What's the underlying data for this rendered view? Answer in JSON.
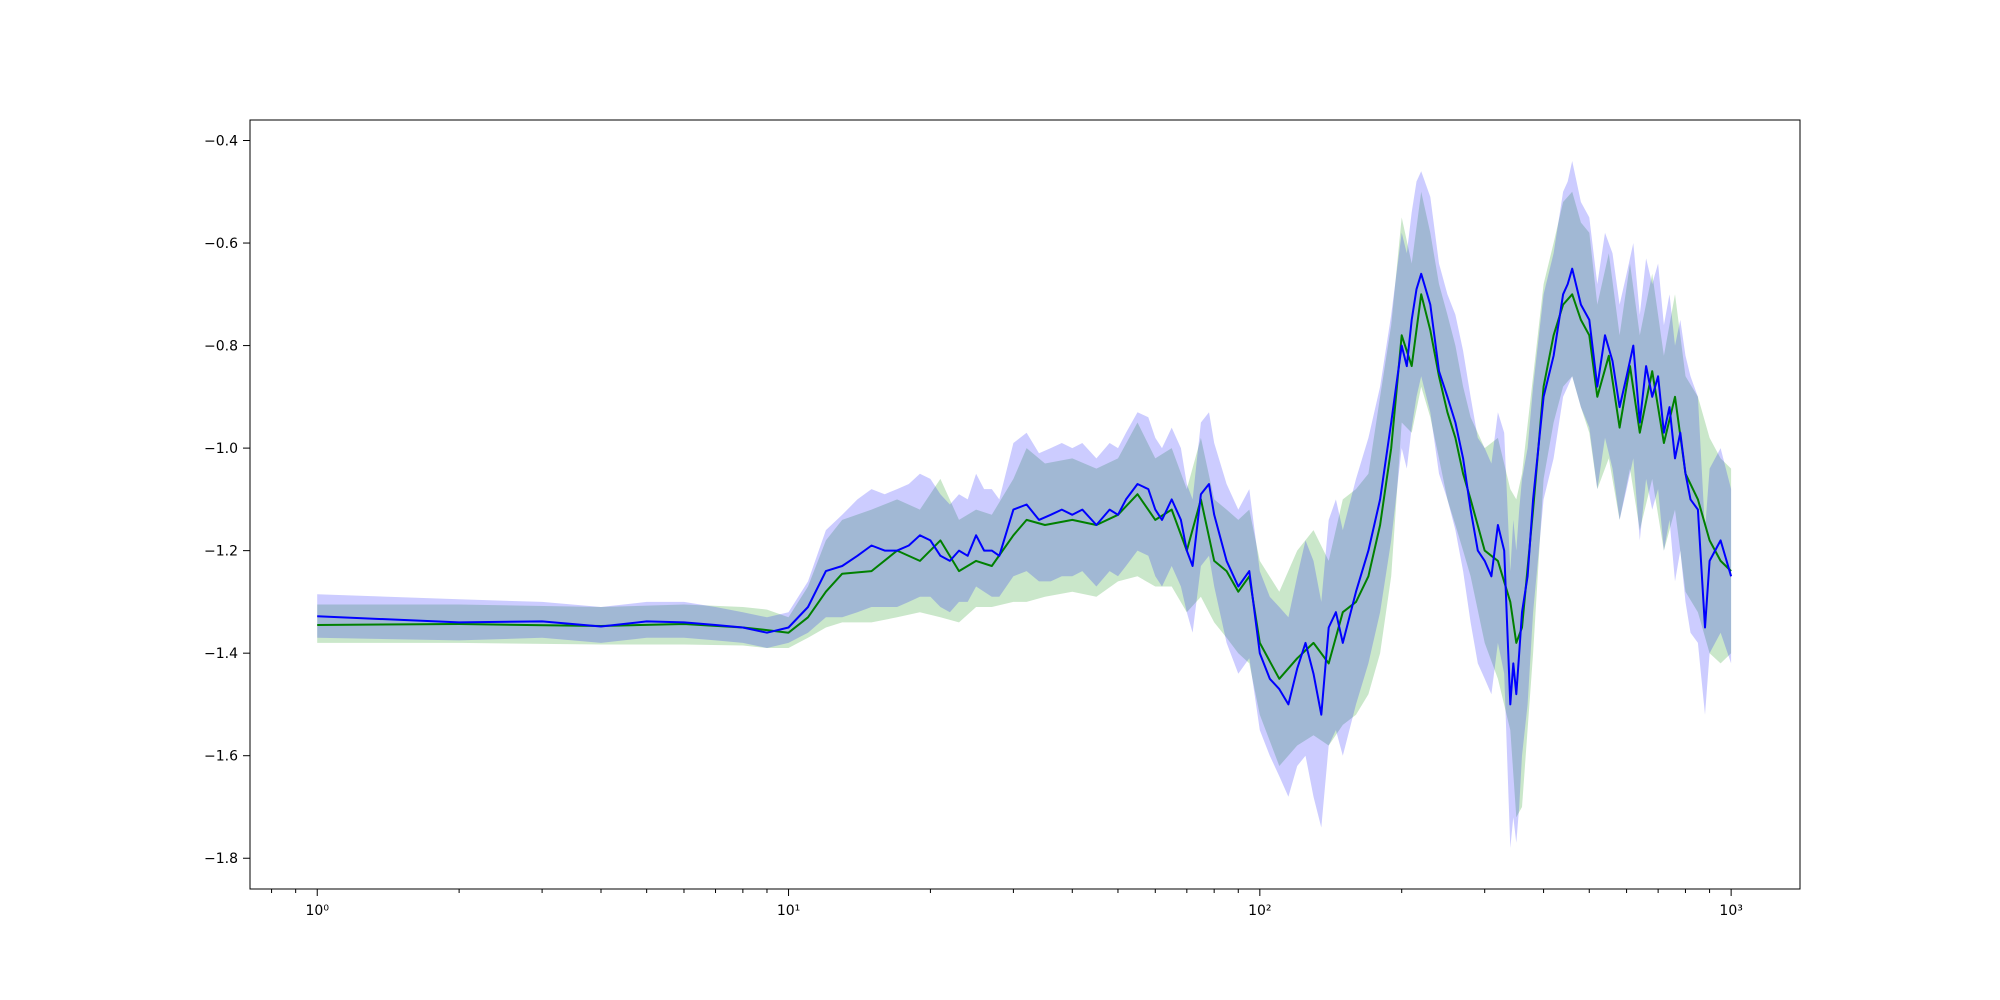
{
  "chart_data": {
    "type": "line",
    "title": "",
    "xlabel": "",
    "ylabel": "",
    "xscale": "log",
    "xlim": [
      0.72,
      1400
    ],
    "ylim": [
      -1.86,
      -0.36
    ],
    "grid": false,
    "legend": "none",
    "x_ticks": [
      {
        "value": 1,
        "label": "10⁰"
      },
      {
        "value": 10,
        "label": "10¹"
      },
      {
        "value": 100,
        "label": "10²"
      },
      {
        "value": 1000,
        "label": "10³"
      }
    ],
    "y_ticks": [
      {
        "value": -0.4,
        "label": "−0.4"
      },
      {
        "value": -0.6,
        "label": "−0.6"
      },
      {
        "value": -0.8,
        "label": "−0.8"
      },
      {
        "value": -1.0,
        "label": "−1.0"
      },
      {
        "value": -1.2,
        "label": "−1.2"
      },
      {
        "value": -1.4,
        "label": "−1.4"
      },
      {
        "value": -1.6,
        "label": "−1.6"
      },
      {
        "value": -1.8,
        "label": "−1.8"
      }
    ],
    "series": [
      {
        "color": "#008000",
        "band_color": "#2ca02c",
        "band_opacity": 0.25,
        "x": [
          1,
          2,
          4,
          6,
          8,
          9,
          10,
          11,
          12,
          13,
          15,
          17,
          19,
          21,
          23,
          25,
          27,
          30,
          32,
          35,
          40,
          45,
          50,
          55,
          60,
          65,
          70,
          75,
          80,
          85,
          90,
          95,
          100,
          110,
          120,
          130,
          140,
          150,
          160,
          170,
          180,
          190,
          200,
          210,
          220,
          230,
          240,
          250,
          260,
          270,
          280,
          300,
          320,
          340,
          350,
          360,
          380,
          400,
          420,
          440,
          460,
          480,
          500,
          520,
          550,
          580,
          610,
          640,
          680,
          720,
          760,
          800,
          850,
          900,
          950,
          1000
        ],
        "y": [
          -1.345,
          -1.343,
          -1.347,
          -1.343,
          -1.35,
          -1.355,
          -1.36,
          -1.33,
          -1.28,
          -1.245,
          -1.24,
          -1.2,
          -1.22,
          -1.18,
          -1.24,
          -1.22,
          -1.23,
          -1.17,
          -1.14,
          -1.15,
          -1.14,
          -1.15,
          -1.13,
          -1.09,
          -1.14,
          -1.12,
          -1.2,
          -1.1,
          -1.22,
          -1.24,
          -1.28,
          -1.25,
          -1.38,
          -1.45,
          -1.41,
          -1.38,
          -1.42,
          -1.32,
          -1.3,
          -1.25,
          -1.15,
          -1.0,
          -0.78,
          -0.84,
          -0.7,
          -0.77,
          -0.86,
          -0.93,
          -0.98,
          -1.05,
          -1.1,
          -1.2,
          -1.22,
          -1.3,
          -1.38,
          -1.35,
          -1.12,
          -0.88,
          -0.78,
          -0.72,
          -0.7,
          -0.75,
          -0.78,
          -0.9,
          -0.82,
          -0.96,
          -0.84,
          -0.97,
          -0.85,
          -0.99,
          -0.9,
          -1.05,
          -1.1,
          -1.18,
          -1.22,
          -1.24
        ],
        "lower": [
          -1.38,
          -1.38,
          -1.383,
          -1.383,
          -1.385,
          -1.39,
          -1.39,
          -1.37,
          -1.35,
          -1.34,
          -1.34,
          -1.33,
          -1.32,
          -1.33,
          -1.34,
          -1.31,
          -1.31,
          -1.3,
          -1.3,
          -1.29,
          -1.28,
          -1.29,
          -1.26,
          -1.25,
          -1.27,
          -1.27,
          -1.32,
          -1.29,
          -1.34,
          -1.37,
          -1.4,
          -1.42,
          -1.52,
          -1.62,
          -1.58,
          -1.56,
          -1.58,
          -1.54,
          -1.52,
          -1.48,
          -1.4,
          -1.25,
          -0.95,
          -0.97,
          -0.88,
          -0.94,
          -1.02,
          -1.1,
          -1.15,
          -1.2,
          -1.25,
          -1.38,
          -1.45,
          -1.55,
          -1.72,
          -1.7,
          -1.4,
          -1.06,
          -0.95,
          -0.88,
          -0.86,
          -0.92,
          -0.97,
          -1.08,
          -1.02,
          -1.14,
          -1.04,
          -1.16,
          -1.06,
          -1.2,
          -1.12,
          -1.28,
          -1.32,
          -1.4,
          -1.42,
          -1.4
        ],
        "upper": [
          -1.305,
          -1.305,
          -1.31,
          -1.305,
          -1.31,
          -1.315,
          -1.33,
          -1.27,
          -1.18,
          -1.14,
          -1.12,
          -1.1,
          -1.12,
          -1.06,
          -1.14,
          -1.12,
          -1.13,
          -1.06,
          -1.0,
          -1.03,
          -1.02,
          -1.04,
          -1.02,
          -0.95,
          -1.02,
          -1.0,
          -1.08,
          -0.98,
          -1.1,
          -1.12,
          -1.14,
          -1.12,
          -1.22,
          -1.28,
          -1.2,
          -1.16,
          -1.22,
          -1.1,
          -1.08,
          -1.05,
          -0.9,
          -0.76,
          -0.55,
          -0.64,
          -0.5,
          -0.58,
          -0.68,
          -0.74,
          -0.8,
          -0.88,
          -0.94,
          -1.0,
          -0.98,
          -1.08,
          -1.1,
          -1.05,
          -0.86,
          -0.68,
          -0.6,
          -0.52,
          -0.5,
          -0.56,
          -0.58,
          -0.72,
          -0.62,
          -0.78,
          -0.64,
          -0.78,
          -0.66,
          -0.82,
          -0.7,
          -0.86,
          -0.9,
          -0.98,
          -1.02,
          -1.04
        ]
      },
      {
        "color": "#0000ff",
        "band_color": "#0000ff",
        "band_opacity": 0.2,
        "x": [
          1,
          2,
          3,
          4,
          5,
          6,
          7,
          8,
          9,
          10,
          11,
          12,
          13,
          14,
          15,
          16,
          17,
          18,
          19,
          20,
          21,
          22,
          23,
          24,
          25,
          26,
          27,
          28,
          30,
          32,
          34,
          36,
          38,
          40,
          42,
          45,
          48,
          50,
          52,
          55,
          58,
          60,
          62,
          65,
          68,
          70,
          72,
          75,
          78,
          80,
          85,
          90,
          95,
          100,
          105,
          110,
          115,
          120,
          125,
          130,
          135,
          140,
          145,
          150,
          160,
          170,
          180,
          190,
          200,
          205,
          210,
          215,
          220,
          230,
          240,
          250,
          260,
          270,
          280,
          290,
          300,
          310,
          320,
          330,
          340,
          345,
          350,
          355,
          360,
          370,
          380,
          400,
          420,
          440,
          450,
          460,
          480,
          500,
          520,
          540,
          560,
          580,
          600,
          620,
          640,
          660,
          680,
          700,
          720,
          740,
          760,
          780,
          800,
          820,
          850,
          880,
          900,
          950,
          1000
        ],
        "y": [
          -1.328,
          -1.34,
          -1.338,
          -1.348,
          -1.338,
          -1.34,
          -1.345,
          -1.35,
          -1.36,
          -1.35,
          -1.31,
          -1.24,
          -1.23,
          -1.21,
          -1.19,
          -1.2,
          -1.2,
          -1.19,
          -1.17,
          -1.18,
          -1.21,
          -1.22,
          -1.2,
          -1.21,
          -1.17,
          -1.2,
          -1.2,
          -1.21,
          -1.12,
          -1.11,
          -1.14,
          -1.13,
          -1.12,
          -1.13,
          -1.12,
          -1.15,
          -1.12,
          -1.13,
          -1.1,
          -1.07,
          -1.08,
          -1.12,
          -1.14,
          -1.1,
          -1.14,
          -1.2,
          -1.23,
          -1.09,
          -1.07,
          -1.13,
          -1.22,
          -1.27,
          -1.24,
          -1.4,
          -1.45,
          -1.47,
          -1.5,
          -1.43,
          -1.38,
          -1.44,
          -1.52,
          -1.35,
          -1.32,
          -1.38,
          -1.28,
          -1.2,
          -1.1,
          -0.95,
          -0.8,
          -0.84,
          -0.75,
          -0.69,
          -0.66,
          -0.72,
          -0.85,
          -0.9,
          -0.95,
          -1.02,
          -1.12,
          -1.2,
          -1.22,
          -1.25,
          -1.15,
          -1.2,
          -1.5,
          -1.42,
          -1.48,
          -1.4,
          -1.32,
          -1.25,
          -1.1,
          -0.9,
          -0.82,
          -0.7,
          -0.68,
          -0.65,
          -0.72,
          -0.75,
          -0.88,
          -0.78,
          -0.83,
          -0.92,
          -0.86,
          -0.8,
          -0.95,
          -0.84,
          -0.9,
          -0.86,
          -0.97,
          -0.92,
          -1.02,
          -0.97,
          -1.05,
          -1.1,
          -1.12,
          -1.35,
          -1.22,
          -1.18,
          -1.25
        ],
        "lower": [
          -1.37,
          -1.375,
          -1.37,
          -1.38,
          -1.37,
          -1.37,
          -1.375,
          -1.38,
          -1.39,
          -1.38,
          -1.36,
          -1.33,
          -1.33,
          -1.32,
          -1.31,
          -1.31,
          -1.31,
          -1.3,
          -1.29,
          -1.29,
          -1.31,
          -1.32,
          -1.3,
          -1.3,
          -1.27,
          -1.28,
          -1.29,
          -1.29,
          -1.25,
          -1.24,
          -1.26,
          -1.26,
          -1.25,
          -1.25,
          -1.24,
          -1.27,
          -1.24,
          -1.25,
          -1.23,
          -1.2,
          -1.21,
          -1.25,
          -1.27,
          -1.23,
          -1.27,
          -1.32,
          -1.36,
          -1.23,
          -1.21,
          -1.27,
          -1.38,
          -1.44,
          -1.41,
          -1.55,
          -1.6,
          -1.64,
          -1.68,
          -1.62,
          -1.6,
          -1.68,
          -1.74,
          -1.58,
          -1.55,
          -1.6,
          -1.5,
          -1.42,
          -1.32,
          -1.18,
          -1.0,
          -1.04,
          -0.96,
          -0.9,
          -0.86,
          -0.93,
          -1.05,
          -1.1,
          -1.16,
          -1.24,
          -1.34,
          -1.42,
          -1.45,
          -1.48,
          -1.38,
          -1.44,
          -1.78,
          -1.72,
          -1.77,
          -1.7,
          -1.6,
          -1.5,
          -1.32,
          -1.1,
          -1.02,
          -0.9,
          -0.88,
          -0.86,
          -0.92,
          -0.96,
          -1.08,
          -0.98,
          -1.04,
          -1.14,
          -1.08,
          -1.02,
          -1.18,
          -1.06,
          -1.12,
          -1.08,
          -1.2,
          -1.14,
          -1.26,
          -1.2,
          -1.3,
          -1.36,
          -1.38,
          -1.52,
          -1.4,
          -1.36,
          -1.42
        ],
        "upper": [
          -1.285,
          -1.295,
          -1.3,
          -1.31,
          -1.3,
          -1.3,
          -1.31,
          -1.32,
          -1.33,
          -1.32,
          -1.26,
          -1.16,
          -1.13,
          -1.1,
          -1.08,
          -1.09,
          -1.08,
          -1.07,
          -1.05,
          -1.06,
          -1.09,
          -1.11,
          -1.09,
          -1.1,
          -1.05,
          -1.08,
          -1.08,
          -1.1,
          -0.99,
          -0.97,
          -1.01,
          -1.0,
          -0.99,
          -1.0,
          -0.99,
          -1.02,
          -0.99,
          -1.0,
          -0.97,
          -0.93,
          -0.94,
          -0.98,
          -1.0,
          -0.96,
          -1.0,
          -1.07,
          -1.1,
          -0.95,
          -0.93,
          -0.99,
          -1.07,
          -1.12,
          -1.08,
          -1.24,
          -1.29,
          -1.31,
          -1.33,
          -1.25,
          -1.18,
          -1.22,
          -1.3,
          -1.14,
          -1.1,
          -1.16,
          -1.06,
          -0.98,
          -0.88,
          -0.74,
          -0.58,
          -0.62,
          -0.54,
          -0.48,
          -0.46,
          -0.51,
          -0.64,
          -0.7,
          -0.74,
          -0.81,
          -0.9,
          -0.98,
          -1.0,
          -1.03,
          -0.93,
          -0.97,
          -1.24,
          -1.14,
          -1.2,
          -1.12,
          -1.06,
          -1.0,
          -0.88,
          -0.7,
          -0.62,
          -0.5,
          -0.48,
          -0.44,
          -0.52,
          -0.55,
          -0.68,
          -0.58,
          -0.62,
          -0.72,
          -0.66,
          -0.6,
          -0.74,
          -0.63,
          -0.68,
          -0.64,
          -0.76,
          -0.7,
          -0.8,
          -0.75,
          -0.82,
          -0.86,
          -0.9,
          -1.16,
          -1.04,
          -1.0,
          -1.08
        ]
      }
    ]
  }
}
